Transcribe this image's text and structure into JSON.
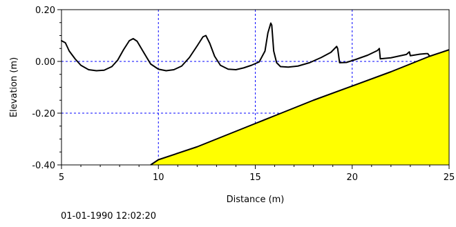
{
  "timestamp": "01-01-1990 12:02:20",
  "chart_data": {
    "type": "line",
    "title": "",
    "xlabel": "Distance (m)",
    "ylabel": "Elevation (m)",
    "xlim": [
      5,
      25
    ],
    "ylim": [
      -0.4,
      0.2
    ],
    "grid": true,
    "x_ticks": [
      {
        "value": 5,
        "label": "5"
      },
      {
        "value": 10,
        "label": "10"
      },
      {
        "value": 15,
        "label": "15"
      },
      {
        "value": 20,
        "label": "20"
      },
      {
        "value": 25,
        "label": "25"
      }
    ],
    "y_ticks": [
      {
        "value": 0.2,
        "label": "0.20"
      },
      {
        "value": 0.0,
        "label": "0.00"
      },
      {
        "value": -0.2,
        "label": "-0.20"
      },
      {
        "value": -0.4,
        "label": "-0.40"
      }
    ],
    "x_minor_step": 1,
    "y_minor_step": 0.05,
    "colors": {
      "bed_fill": "#ffff00",
      "line": "#000000",
      "grid": "#0000ff"
    },
    "series": [
      {
        "kind": "water_surface",
        "points": [
          [
            5.0,
            0.08
          ],
          [
            5.2,
            0.072
          ],
          [
            5.4,
            0.04
          ],
          [
            5.7,
            0.01
          ],
          [
            6.0,
            -0.015
          ],
          [
            6.4,
            -0.032
          ],
          [
            6.8,
            -0.036
          ],
          [
            7.2,
            -0.034
          ],
          [
            7.6,
            -0.02
          ],
          [
            7.9,
            0.005
          ],
          [
            8.2,
            0.045
          ],
          [
            8.5,
            0.08
          ],
          [
            8.7,
            0.088
          ],
          [
            8.9,
            0.078
          ],
          [
            9.2,
            0.04
          ],
          [
            9.6,
            -0.01
          ],
          [
            10.0,
            -0.03
          ],
          [
            10.4,
            -0.036
          ],
          [
            10.8,
            -0.032
          ],
          [
            11.2,
            -0.018
          ],
          [
            11.6,
            0.015
          ],
          [
            12.0,
            0.06
          ],
          [
            12.3,
            0.095
          ],
          [
            12.45,
            0.1
          ],
          [
            12.65,
            0.07
          ],
          [
            12.9,
            0.02
          ],
          [
            13.2,
            -0.015
          ],
          [
            13.6,
            -0.03
          ],
          [
            14.0,
            -0.032
          ],
          [
            14.4,
            -0.025
          ],
          [
            14.8,
            -0.015
          ],
          [
            15.2,
            -0.002
          ],
          [
            15.5,
            0.04
          ],
          [
            15.65,
            0.11
          ],
          [
            15.8,
            0.148
          ],
          [
            15.85,
            0.14
          ],
          [
            15.95,
            0.04
          ],
          [
            16.1,
            -0.005
          ],
          [
            16.3,
            -0.02
          ],
          [
            16.7,
            -0.022
          ],
          [
            17.2,
            -0.018
          ],
          [
            17.8,
            -0.005
          ],
          [
            18.4,
            0.015
          ],
          [
            18.9,
            0.035
          ],
          [
            19.2,
            0.058
          ],
          [
            19.25,
            0.05
          ],
          [
            19.35,
            -0.005
          ],
          [
            19.7,
            -0.004
          ],
          [
            20.2,
            0.008
          ],
          [
            20.8,
            0.024
          ],
          [
            21.3,
            0.042
          ],
          [
            21.4,
            0.05
          ],
          [
            21.45,
            0.01
          ],
          [
            22.0,
            0.014
          ],
          [
            22.8,
            0.027
          ],
          [
            22.95,
            0.037
          ],
          [
            23.0,
            0.022
          ],
          [
            23.5,
            0.028
          ],
          [
            23.8,
            0.03
          ],
          [
            23.9,
            0.03
          ],
          [
            24.0,
            0.02
          ]
        ]
      },
      {
        "kind": "bed_profile",
        "points": [
          [
            9.6,
            -0.4
          ],
          [
            10.0,
            -0.38
          ],
          [
            12.0,
            -0.33
          ],
          [
            14.0,
            -0.27
          ],
          [
            15.0,
            -0.24
          ],
          [
            16.0,
            -0.21
          ],
          [
            18.0,
            -0.15
          ],
          [
            20.0,
            -0.095
          ],
          [
            22.0,
            -0.04
          ],
          [
            24.0,
            0.02
          ],
          [
            25.0,
            0.045
          ]
        ]
      }
    ]
  }
}
